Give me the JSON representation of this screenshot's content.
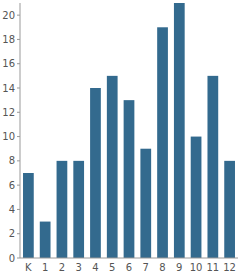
{
  "chart_data": {
    "type": "bar",
    "categories": [
      "K",
      "1",
      "2",
      "3",
      "4",
      "5",
      "6",
      "7",
      "8",
      "9",
      "10",
      "11",
      "12"
    ],
    "values": [
      7,
      3,
      8,
      8,
      14,
      15,
      13,
      9,
      19,
      21,
      10,
      15,
      8
    ],
    "color": "#336a8e",
    "ylim": [
      0,
      21
    ],
    "yticks": [
      0,
      2,
      4,
      6,
      8,
      10,
      12,
      14,
      16,
      18,
      20
    ],
    "grid": false
  }
}
